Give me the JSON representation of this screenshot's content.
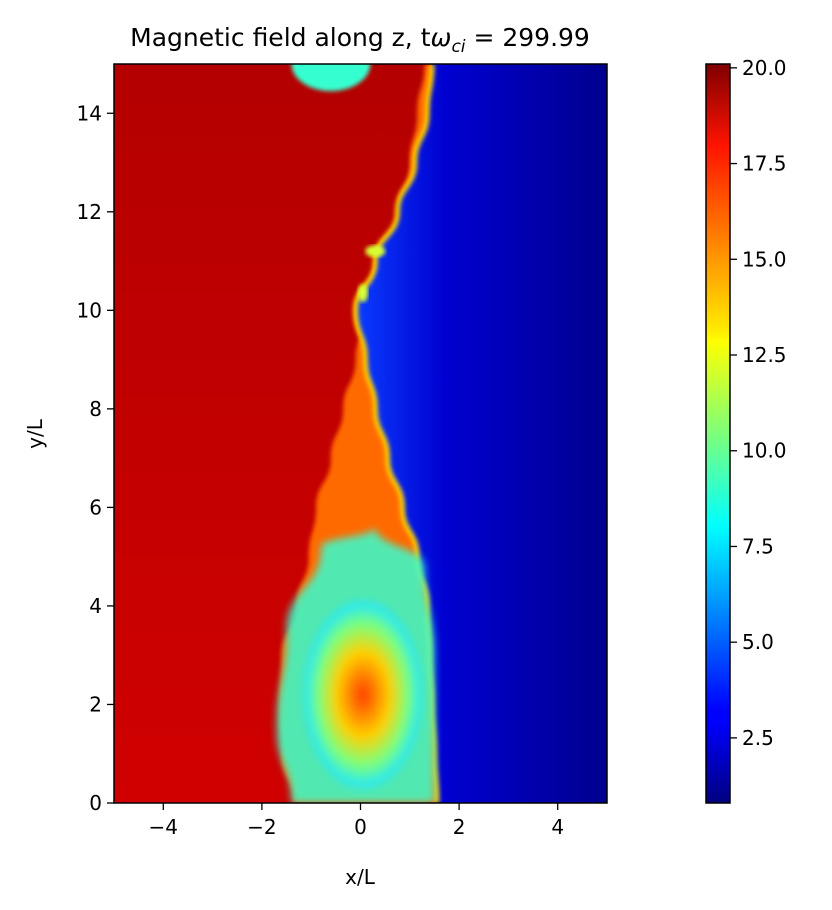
{
  "chart_data": {
    "type": "heatmap",
    "title_prefix": "Magnetic field along z, t",
    "title_symbol": "ω",
    "title_subscript": "ci",
    "title_suffix": " = 299.99",
    "xlabel": "x/L",
    "ylabel": "y/L",
    "xlim": [
      -5,
      5
    ],
    "ylim": [
      0,
      15
    ],
    "xticks": [
      -4,
      -2,
      0,
      2,
      4
    ],
    "yticks": [
      0,
      2,
      4,
      6,
      8,
      10,
      12,
      14
    ],
    "colorbar": {
      "colormap": "jet",
      "range": [
        0.8,
        20.1
      ],
      "ticks": [
        "2.5",
        "5.0",
        "7.5",
        "10.0",
        "12.5",
        "15.0",
        "17.5",
        "20.0"
      ]
    },
    "interface_x_at_y": [
      [
        0,
        1.55
      ],
      [
        1,
        1.5
      ],
      [
        2,
        1.45
      ],
      [
        3,
        1.4
      ],
      [
        4,
        1.35
      ],
      [
        5,
        1.15
      ],
      [
        6,
        0.85
      ],
      [
        7,
        0.55
      ],
      [
        8,
        0.3
      ],
      [
        9,
        0.1
      ],
      [
        10,
        -0.1
      ],
      [
        11,
        0.3
      ],
      [
        12,
        0.75
      ],
      [
        13,
        1.1
      ],
      [
        14,
        1.35
      ],
      [
        15,
        1.45
      ]
    ],
    "left_boundary_x_at_y": [
      [
        0,
        -1.35
      ],
      [
        1,
        -1.6
      ],
      [
        2,
        -1.65
      ],
      [
        3,
        -1.6
      ],
      [
        4,
        -1.3
      ],
      [
        5,
        -1.05
      ],
      [
        6,
        -0.9
      ],
      [
        7,
        -0.6
      ],
      [
        8,
        -0.35
      ],
      [
        9,
        -0.1
      ],
      [
        10,
        0.15
      ],
      [
        11,
        0.45
      ],
      [
        12,
        0.75
      ],
      [
        13,
        1.0
      ],
      [
        14,
        1.15
      ],
      [
        15,
        1.3
      ]
    ]
  }
}
